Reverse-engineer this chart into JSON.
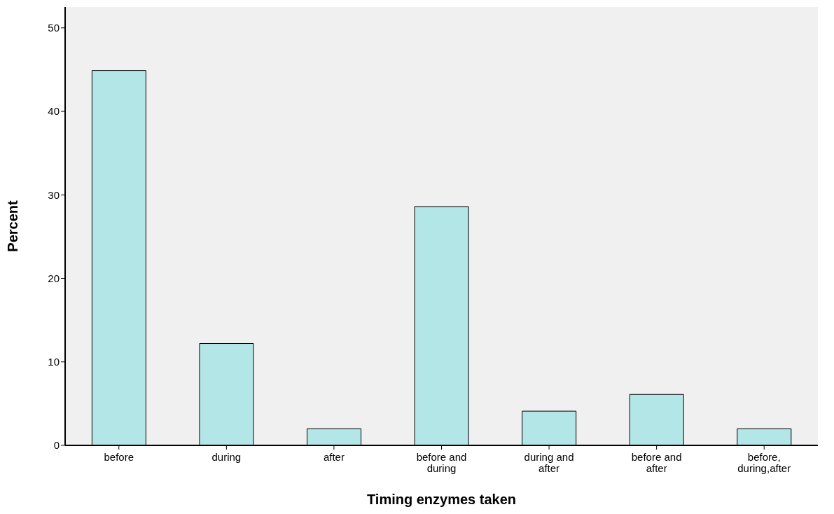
{
  "chart_data": {
    "type": "bar",
    "xlabel": "Timing enzymes taken",
    "ylabel": "Percent",
    "categories": [
      "before",
      "during",
      "after",
      "before and during",
      "during and after",
      "before and after",
      "before, during,after"
    ],
    "values": [
      44.9,
      12.2,
      2.0,
      28.6,
      4.1,
      6.1,
      2.0
    ],
    "color": "#b3e6e6",
    "ylim": [
      0,
      52.5
    ],
    "yticks": [
      0,
      10,
      20,
      30,
      40,
      50
    ],
    "grid": false
  }
}
